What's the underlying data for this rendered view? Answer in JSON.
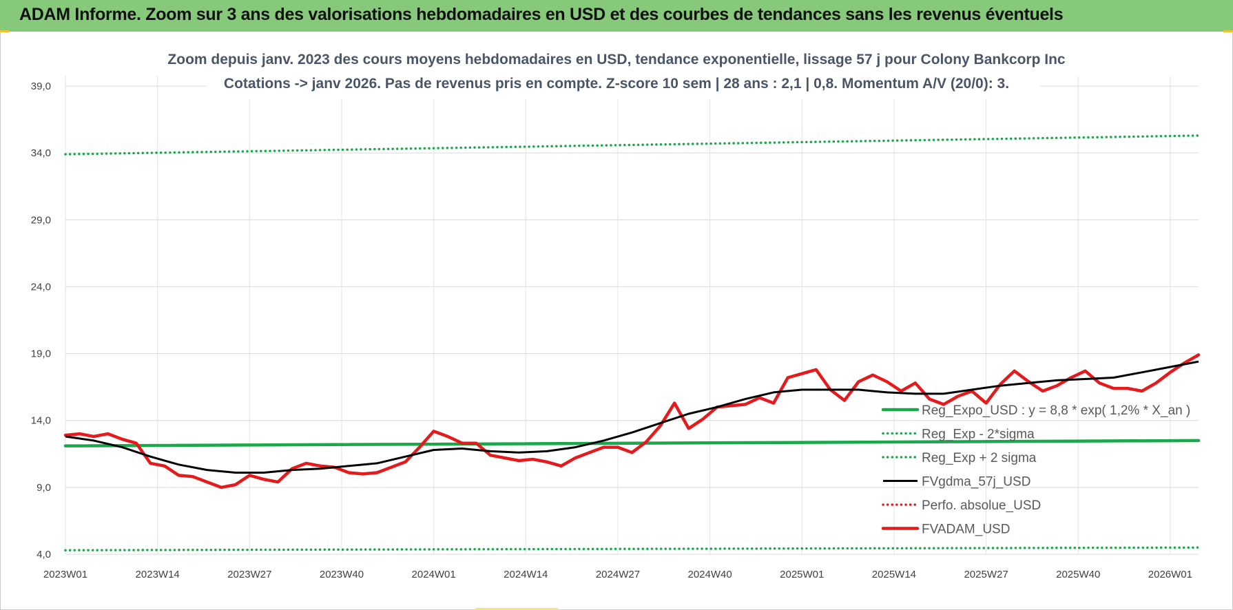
{
  "header": {
    "title": "ADAM Informe. Zoom sur 3 ans des valorisations hebdomadaires en USD et des courbes de tendances sans les revenus éventuels"
  },
  "chart_data": {
    "type": "line",
    "title_line1": "Zoom depuis janv. 2023 des cours moyens hebdomadaires en USD, tendance exponentielle, lissage 57 j pour Colony Bankcorp Inc",
    "title_line2": "Cotations -> janv 2026. Pas de revenus pris en compte. Z-score 10 sem | 28 ans : 2,1 | 0,8. Momentum A/V (20/0): 3.",
    "ylim": [
      4,
      39
    ],
    "y_ticks": [
      "4,0",
      "9,0",
      "14,0",
      "19,0",
      "24,0",
      "29,0",
      "34,0",
      "39,0"
    ],
    "y_tick_values": [
      4,
      9,
      14,
      19,
      24,
      29,
      34,
      39
    ],
    "x_ticks": [
      "2023W01",
      "2023W14",
      "2023W27",
      "2023W40",
      "2024W01",
      "2024W14",
      "2024W27",
      "2024W40",
      "2025W01",
      "2025W14",
      "2025W27",
      "2025W40",
      "2026W01"
    ],
    "x_tick_index": [
      0,
      13,
      26,
      39,
      52,
      65,
      78,
      91,
      104,
      117,
      130,
      143,
      156
    ],
    "x_count": 161,
    "grid": true,
    "legend_position": "right",
    "series": [
      {
        "name": "Reg_Expo_USD : y = 8,8 * exp( 1,2% * X_an )",
        "color": "#1aa84a",
        "style": "thick",
        "anchors": [
          [
            0,
            12.1
          ],
          [
            160,
            12.5
          ]
        ]
      },
      {
        "name": "Reg_Exp - 2*sigma",
        "color": "#1aa84a",
        "style": "dotted",
        "anchors": [
          [
            0,
            4.3
          ],
          [
            160,
            4.5
          ]
        ]
      },
      {
        "name": "Reg_Exp + 2 sigma",
        "color": "#1aa84a",
        "style": "dotted",
        "anchors": [
          [
            0,
            33.9
          ],
          [
            160,
            35.3
          ]
        ]
      },
      {
        "name": "FVgdma_57j_USD",
        "color": "#000000",
        "style": "solid",
        "anchors": [
          [
            0,
            12.8
          ],
          [
            4,
            12.5
          ],
          [
            8,
            12.0
          ],
          [
            12,
            11.3
          ],
          [
            16,
            10.7
          ],
          [
            20,
            10.3
          ],
          [
            24,
            10.1
          ],
          [
            28,
            10.1
          ],
          [
            32,
            10.3
          ],
          [
            36,
            10.4
          ],
          [
            40,
            10.6
          ],
          [
            44,
            10.8
          ],
          [
            48,
            11.3
          ],
          [
            52,
            11.8
          ],
          [
            56,
            11.9
          ],
          [
            60,
            11.7
          ],
          [
            64,
            11.6
          ],
          [
            68,
            11.7
          ],
          [
            72,
            12.0
          ],
          [
            76,
            12.5
          ],
          [
            80,
            13.1
          ],
          [
            84,
            13.8
          ],
          [
            88,
            14.5
          ],
          [
            92,
            15.0
          ],
          [
            96,
            15.6
          ],
          [
            100,
            16.1
          ],
          [
            104,
            16.3
          ],
          [
            108,
            16.3
          ],
          [
            112,
            16.3
          ],
          [
            116,
            16.1
          ],
          [
            120,
            16.0
          ],
          [
            124,
            16.0
          ],
          [
            128,
            16.3
          ],
          [
            132,
            16.6
          ],
          [
            136,
            16.8
          ],
          [
            140,
            17.0
          ],
          [
            144,
            17.1
          ],
          [
            148,
            17.2
          ],
          [
            152,
            17.6
          ],
          [
            156,
            18.0
          ],
          [
            160,
            18.4
          ]
        ]
      },
      {
        "name": "Perfo. absolue_USD",
        "color": "#e41a1c",
        "style": "dotted",
        "anchors": []
      },
      {
        "name": "FVADAM_USD",
        "color": "#e41a1c",
        "style": "thick",
        "anchors": [
          [
            0,
            12.9
          ],
          [
            2,
            13.0
          ],
          [
            4,
            12.8
          ],
          [
            6,
            13.0
          ],
          [
            8,
            12.6
          ],
          [
            10,
            12.3
          ],
          [
            12,
            10.8
          ],
          [
            14,
            10.6
          ],
          [
            16,
            9.9
          ],
          [
            18,
            9.8
          ],
          [
            20,
            9.4
          ],
          [
            22,
            9.0
          ],
          [
            24,
            9.2
          ],
          [
            26,
            9.9
          ],
          [
            28,
            9.6
          ],
          [
            30,
            9.4
          ],
          [
            32,
            10.4
          ],
          [
            34,
            10.8
          ],
          [
            36,
            10.6
          ],
          [
            38,
            10.5
          ],
          [
            40,
            10.1
          ],
          [
            42,
            10.0
          ],
          [
            44,
            10.1
          ],
          [
            46,
            10.5
          ],
          [
            48,
            10.9
          ],
          [
            50,
            12.0
          ],
          [
            52,
            13.2
          ],
          [
            54,
            12.8
          ],
          [
            56,
            12.3
          ],
          [
            58,
            12.3
          ],
          [
            60,
            11.4
          ],
          [
            62,
            11.2
          ],
          [
            64,
            11.0
          ],
          [
            66,
            11.1
          ],
          [
            68,
            10.9
          ],
          [
            70,
            10.6
          ],
          [
            72,
            11.2
          ],
          [
            74,
            11.6
          ],
          [
            76,
            12.0
          ],
          [
            78,
            12.0
          ],
          [
            80,
            11.6
          ],
          [
            82,
            12.4
          ],
          [
            84,
            13.6
          ],
          [
            86,
            15.3
          ],
          [
            88,
            13.4
          ],
          [
            90,
            14.1
          ],
          [
            92,
            15.0
          ],
          [
            94,
            15.1
          ],
          [
            96,
            15.2
          ],
          [
            98,
            15.7
          ],
          [
            100,
            15.3
          ],
          [
            102,
            17.2
          ],
          [
            104,
            17.5
          ],
          [
            106,
            17.8
          ],
          [
            108,
            16.3
          ],
          [
            110,
            15.5
          ],
          [
            112,
            16.9
          ],
          [
            114,
            17.4
          ],
          [
            116,
            16.9
          ],
          [
            118,
            16.2
          ],
          [
            120,
            16.8
          ],
          [
            122,
            15.6
          ],
          [
            124,
            15.2
          ],
          [
            126,
            15.8
          ],
          [
            128,
            16.2
          ],
          [
            130,
            15.3
          ],
          [
            132,
            16.7
          ],
          [
            134,
            17.7
          ],
          [
            136,
            16.9
          ],
          [
            138,
            16.2
          ],
          [
            140,
            16.6
          ],
          [
            142,
            17.2
          ],
          [
            144,
            17.7
          ],
          [
            146,
            16.8
          ],
          [
            148,
            16.4
          ],
          [
            150,
            16.4
          ],
          [
            152,
            16.2
          ],
          [
            154,
            16.8
          ],
          [
            156,
            17.6
          ],
          [
            158,
            18.3
          ],
          [
            160,
            18.9
          ]
        ]
      }
    ]
  }
}
